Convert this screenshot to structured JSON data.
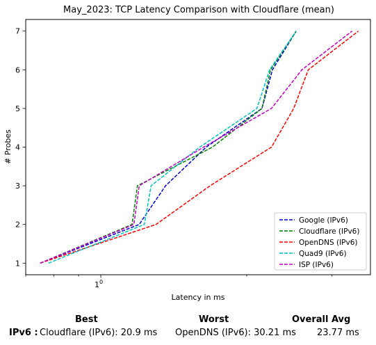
{
  "chart_data": {
    "type": "line",
    "title": "May_2023: TCP Latency Comparison with Cloudflare (mean)",
    "xlabel": "Latency in ms",
    "ylabel": "# Probes",
    "xscale": "log",
    "xlim": [
      7.0,
      36.0
    ],
    "ylim": [
      0.7,
      7.3
    ],
    "xticks": [
      {
        "value": 10,
        "label": "10"
      }
    ],
    "yticks": [
      1,
      2,
      3,
      4,
      5,
      6,
      7
    ],
    "ytick_labels": [
      "1",
      "2",
      "3",
      "4",
      "5",
      "6",
      "7"
    ],
    "grid": false,
    "legend_position": "lower-right",
    "series": [
      {
        "name": "Google (IPv6)",
        "color": "#0000cc",
        "points": [
          [
            7.5,
            1
          ],
          [
            12.0,
            2
          ],
          [
            13.6,
            3
          ],
          [
            16.5,
            4
          ],
          [
            21.5,
            5
          ],
          [
            22.6,
            6
          ],
          [
            25.3,
            7
          ]
        ]
      },
      {
        "name": "Cloudflare (IPv6)",
        "color": "#007f00",
        "points": [
          [
            7.5,
            1
          ],
          [
            11.6,
            2
          ],
          [
            11.9,
            3
          ],
          [
            17.0,
            4
          ],
          [
            21.5,
            5
          ],
          [
            22.4,
            6
          ],
          [
            25.3,
            7
          ]
        ]
      },
      {
        "name": "OpenDNS (IPv6)",
        "color": "#ff0000",
        "points": [
          [
            7.5,
            1
          ],
          [
            13.0,
            2
          ],
          [
            16.8,
            3
          ],
          [
            22.5,
            4
          ],
          [
            25.0,
            5
          ],
          [
            26.8,
            6
          ],
          [
            34.0,
            7
          ]
        ]
      },
      {
        "name": "Quad9 (IPv6)",
        "color": "#00c0c0",
        "points": [
          [
            7.8,
            1
          ],
          [
            12.3,
            2
          ],
          [
            12.7,
            3
          ],
          [
            16.0,
            4
          ],
          [
            21.0,
            5
          ],
          [
            22.3,
            6
          ],
          [
            25.3,
            7
          ]
        ]
      },
      {
        "name": "ISP (IPv6)",
        "color": "#c000c0",
        "points": [
          [
            7.5,
            1
          ],
          [
            11.7,
            2
          ],
          [
            12.0,
            3
          ],
          [
            16.3,
            4
          ],
          [
            22.5,
            5
          ],
          [
            26.0,
            6
          ],
          [
            33.0,
            7
          ]
        ]
      }
    ]
  },
  "summary": {
    "best_header": "Best",
    "worst_header": "Worst",
    "overall_header": "Overall Avg",
    "row_label": "IPv6 :",
    "best_value": "Cloudflare (IPv6): 20.9 ms",
    "worst_value": "OpenDNS (IPv6): 30.21 ms",
    "overall_value": "23.77 ms"
  }
}
